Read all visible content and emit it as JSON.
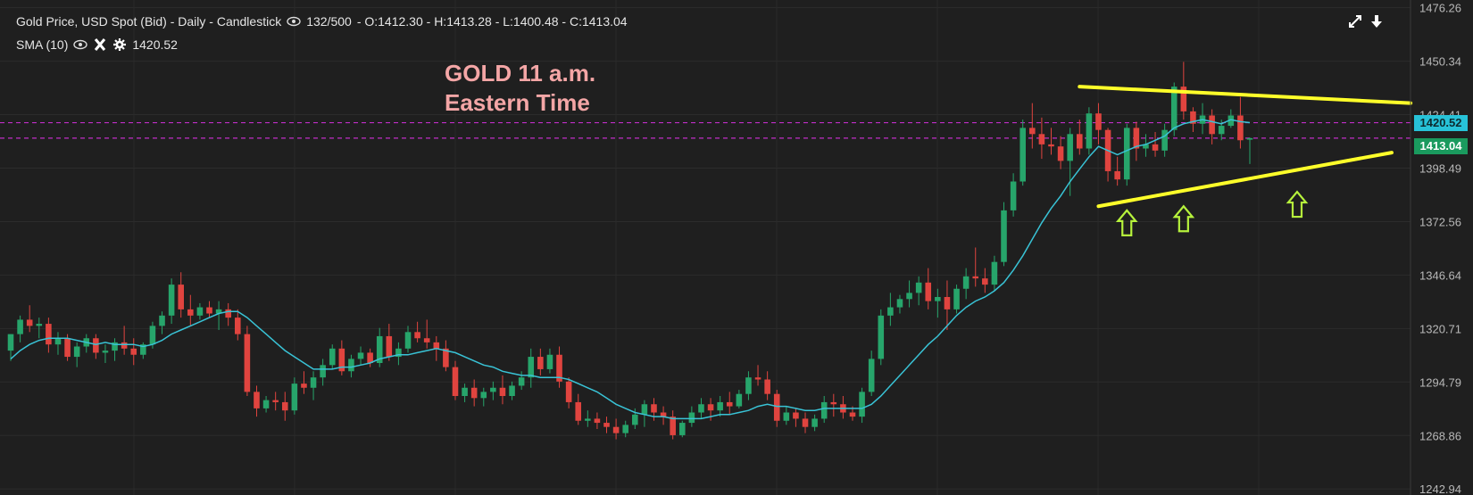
{
  "header": {
    "title": "Gold Price, USD Spot (Bid) - Daily - Candlestick",
    "bar_count": "132/500",
    "ohlc": "- O:1412.30 - H:1413.28 - L:1400.48 - C:1413.04",
    "indicator_name": "SMA (10)",
    "indicator_value": "1420.52"
  },
  "annotation": {
    "line1": "GOLD 11 a.m.",
    "line2": "Eastern Time"
  },
  "icons": [
    "eye-icon",
    "close-icon",
    "gear-icon",
    "expand-icon",
    "download-icon"
  ],
  "price_tags": {
    "sma": "1420.52",
    "last": "1413.04"
  },
  "colors": {
    "background": "#1f1f1f",
    "up": "#27a56b",
    "down": "#e0443f",
    "sma": "#39c3d6",
    "trendline": "#ffff2a",
    "arrow": "#b6f23c",
    "hline": "#c02ec7",
    "sma_tag": "#27c2d8",
    "last_tag": "#1a9a5e"
  },
  "chart_data": {
    "type": "candlestick",
    "ylim": [
      1240,
      1480
    ],
    "ytick_labels": [
      "1476.26",
      "1450.34",
      "1424.41",
      "1398.49",
      "1372.56",
      "1346.64",
      "1320.71",
      "1294.79",
      "1268.86",
      "1242.94"
    ],
    "ytick_values": [
      1476.26,
      1450.34,
      1424.41,
      1398.49,
      1372.56,
      1346.64,
      1320.71,
      1294.79,
      1268.86,
      1242.94
    ],
    "hlines": [
      1420.52,
      1413.04
    ],
    "candles": [
      [
        1310,
        1318,
        1305,
        1318
      ],
      [
        1318,
        1327,
        1314,
        1325
      ],
      [
        1325,
        1332,
        1319,
        1322
      ],
      [
        1322,
        1326,
        1316,
        1323
      ],
      [
        1323,
        1326,
        1309,
        1313
      ],
      [
        1313,
        1319,
        1308,
        1316
      ],
      [
        1316,
        1318,
        1305,
        1307
      ],
      [
        1307,
        1314,
        1302,
        1312
      ],
      [
        1312,
        1318,
        1309,
        1316
      ],
      [
        1316,
        1318,
        1306,
        1309
      ],
      [
        1309,
        1313,
        1304,
        1310
      ],
      [
        1310,
        1316,
        1305,
        1314
      ],
      [
        1314,
        1322,
        1308,
        1311
      ],
      [
        1311,
        1316,
        1303,
        1308
      ],
      [
        1308,
        1314,
        1306,
        1313
      ],
      [
        1313,
        1324,
        1311,
        1322
      ],
      [
        1322,
        1329,
        1318,
        1327
      ],
      [
        1327,
        1345,
        1323,
        1342
      ],
      [
        1342,
        1348,
        1326,
        1330
      ],
      [
        1330,
        1337,
        1322,
        1327
      ],
      [
        1327,
        1333,
        1325,
        1331
      ],
      [
        1331,
        1334,
        1326,
        1328
      ],
      [
        1328,
        1334,
        1320,
        1330
      ],
      [
        1330,
        1333,
        1322,
        1326
      ],
      [
        1326,
        1330,
        1315,
        1318
      ],
      [
        1318,
        1322,
        1288,
        1290
      ],
      [
        1290,
        1293,
        1278,
        1282
      ],
      [
        1282,
        1288,
        1280,
        1286
      ],
      [
        1286,
        1290,
        1281,
        1285
      ],
      [
        1285,
        1290,
        1276,
        1281
      ],
      [
        1281,
        1297,
        1279,
        1294
      ],
      [
        1294,
        1300,
        1289,
        1292
      ],
      [
        1292,
        1300,
        1286,
        1297
      ],
      [
        1297,
        1306,
        1293,
        1303
      ],
      [
        1303,
        1313,
        1301,
        1311
      ],
      [
        1311,
        1315,
        1298,
        1300
      ],
      [
        1300,
        1308,
        1297,
        1306
      ],
      [
        1306,
        1312,
        1303,
        1309
      ],
      [
        1309,
        1311,
        1302,
        1304
      ],
      [
        1304,
        1321,
        1302,
        1317
      ],
      [
        1317,
        1323,
        1305,
        1307
      ],
      [
        1307,
        1314,
        1303,
        1311
      ],
      [
        1311,
        1322,
        1309,
        1319
      ],
      [
        1319,
        1324,
        1314,
        1316
      ],
      [
        1316,
        1325,
        1311,
        1314
      ],
      [
        1314,
        1317,
        1305,
        1311
      ],
      [
        1311,
        1315,
        1300,
        1302
      ],
      [
        1302,
        1305,
        1286,
        1288
      ],
      [
        1288,
        1294,
        1285,
        1292
      ],
      [
        1292,
        1296,
        1283,
        1287
      ],
      [
        1287,
        1292,
        1283,
        1290
      ],
      [
        1290,
        1295,
        1286,
        1292
      ],
      [
        1292,
        1298,
        1284,
        1288
      ],
      [
        1288,
        1295,
        1286,
        1293
      ],
      [
        1293,
        1300,
        1291,
        1297
      ],
      [
        1297,
        1311,
        1292,
        1307
      ],
      [
        1307,
        1311,
        1298,
        1301
      ],
      [
        1301,
        1311,
        1299,
        1308
      ],
      [
        1308,
        1312,
        1292,
        1295
      ],
      [
        1295,
        1297,
        1282,
        1285
      ],
      [
        1285,
        1289,
        1274,
        1276
      ],
      [
        1276,
        1281,
        1273,
        1277
      ],
      [
        1277,
        1280,
        1272,
        1275
      ],
      [
        1275,
        1278,
        1270,
        1273
      ],
      [
        1273,
        1277,
        1267,
        1270
      ],
      [
        1270,
        1276,
        1268,
        1274
      ],
      [
        1274,
        1282,
        1272,
        1279
      ],
      [
        1279,
        1286,
        1273,
        1284
      ],
      [
        1284,
        1287,
        1276,
        1280
      ],
      [
        1280,
        1283,
        1274,
        1278
      ],
      [
        1278,
        1281,
        1267,
        1269
      ],
      [
        1269,
        1276,
        1268,
        1275
      ],
      [
        1275,
        1283,
        1273,
        1280
      ],
      [
        1280,
        1287,
        1277,
        1284
      ],
      [
        1284,
        1287,
        1276,
        1281
      ],
      [
        1281,
        1288,
        1278,
        1285
      ],
      [
        1285,
        1290,
        1279,
        1283
      ],
      [
        1283,
        1291,
        1282,
        1289
      ],
      [
        1289,
        1300,
        1286,
        1297
      ],
      [
        1297,
        1303,
        1293,
        1296
      ],
      [
        1296,
        1300,
        1286,
        1289
      ],
      [
        1289,
        1291,
        1273,
        1276
      ],
      [
        1276,
        1283,
        1274,
        1280
      ],
      [
        1280,
        1282,
        1273,
        1277
      ],
      [
        1277,
        1280,
        1270,
        1273
      ],
      [
        1273,
        1279,
        1271,
        1277
      ],
      [
        1277,
        1288,
        1275,
        1285
      ],
      [
        1285,
        1289,
        1278,
        1284
      ],
      [
        1284,
        1288,
        1277,
        1280
      ],
      [
        1280,
        1283,
        1276,
        1278
      ],
      [
        1278,
        1292,
        1275,
        1290
      ],
      [
        1290,
        1310,
        1288,
        1306
      ],
      [
        1306,
        1330,
        1303,
        1327
      ],
      [
        1327,
        1338,
        1322,
        1331
      ],
      [
        1331,
        1337,
        1328,
        1335
      ],
      [
        1335,
        1344,
        1331,
        1338
      ],
      [
        1338,
        1346,
        1332,
        1343
      ],
      [
        1343,
        1350,
        1330,
        1334
      ],
      [
        1334,
        1340,
        1326,
        1336
      ],
      [
        1336,
        1344,
        1320,
        1330
      ],
      [
        1330,
        1342,
        1328,
        1340
      ],
      [
        1340,
        1350,
        1335,
        1346
      ],
      [
        1346,
        1360,
        1341,
        1345
      ],
      [
        1345,
        1350,
        1338,
        1342
      ],
      [
        1342,
        1356,
        1339,
        1353
      ],
      [
        1353,
        1382,
        1351,
        1378
      ],
      [
        1378,
        1396,
        1375,
        1392
      ],
      [
        1392,
        1422,
        1390,
        1418
      ],
      [
        1418,
        1430,
        1408,
        1415
      ],
      [
        1415,
        1423,
        1403,
        1410
      ],
      [
        1410,
        1418,
        1405,
        1409
      ],
      [
        1409,
        1414,
        1398,
        1402
      ],
      [
        1402,
        1418,
        1385,
        1415
      ],
      [
        1415,
        1422,
        1405,
        1408
      ],
      [
        1408,
        1428,
        1405,
        1425
      ],
      [
        1425,
        1430,
        1410,
        1417
      ],
      [
        1417,
        1418,
        1392,
        1397
      ],
      [
        1397,
        1404,
        1390,
        1393
      ],
      [
        1393,
        1420,
        1390,
        1418
      ],
      [
        1418,
        1421,
        1402,
        1408
      ],
      [
        1408,
        1415,
        1404,
        1410
      ],
      [
        1410,
        1416,
        1404,
        1407
      ],
      [
        1407,
        1420,
        1404,
        1417
      ],
      [
        1417,
        1440,
        1414,
        1438
      ],
      [
        1438,
        1450,
        1422,
        1426
      ],
      [
        1426,
        1428,
        1416,
        1420
      ],
      [
        1420,
        1430,
        1415,
        1424
      ],
      [
        1424,
        1427,
        1410,
        1415
      ],
      [
        1415,
        1422,
        1412,
        1419
      ],
      [
        1419,
        1427,
        1418,
        1424
      ],
      [
        1424,
        1433,
        1408,
        1412
      ],
      [
        1412.3,
        1413.28,
        1400.48,
        1413.04
      ]
    ],
    "sma": [
      1306,
      1310,
      1313,
      1315,
      1316,
      1316,
      1316,
      1315,
      1314,
      1313,
      1314,
      1313,
      1313,
      1313,
      1312,
      1313,
      1315,
      1318,
      1320,
      1322,
      1324,
      1326,
      1328,
      1329,
      1329,
      1326,
      1322,
      1318,
      1314,
      1310,
      1307,
      1304,
      1301,
      1301,
      1301,
      1302,
      1302,
      1303,
      1304,
      1306,
      1307,
      1308,
      1308,
      1309,
      1310,
      1311,
      1310,
      1309,
      1307,
      1305,
      1303,
      1302,
      1300,
      1299,
      1298,
      1298,
      1297,
      1297,
      1297,
      1296,
      1294,
      1292,
      1290,
      1287,
      1284,
      1282,
      1280,
      1279,
      1278,
      1278,
      1277,
      1277,
      1277,
      1277,
      1278,
      1279,
      1279,
      1280,
      1281,
      1283,
      1284,
      1283,
      1283,
      1282,
      1281,
      1281,
      1282,
      1282,
      1282,
      1282,
      1282,
      1284,
      1288,
      1293,
      1298,
      1303,
      1308,
      1313,
      1317,
      1322,
      1327,
      1331,
      1334,
      1336,
      1339,
      1343,
      1349,
      1356,
      1364,
      1372,
      1379,
      1385,
      1392,
      1398,
      1404,
      1409,
      1407,
      1405,
      1407,
      1409,
      1410,
      1412,
      1414,
      1418,
      1420,
      1421,
      1422,
      1421,
      1420,
      1422,
      1421,
      1420.52
    ],
    "trendlines": [
      {
        "i0": 113,
        "v0": 1438,
        "i1": 148,
        "v1": 1430
      },
      {
        "i0": 115,
        "v0": 1380,
        "i1": 146,
        "v1": 1406
      }
    ],
    "arrows": [
      {
        "i": 118,
        "v": 1378
      },
      {
        "i": 124,
        "v": 1380
      },
      {
        "i": 136,
        "v": 1387
      }
    ]
  }
}
